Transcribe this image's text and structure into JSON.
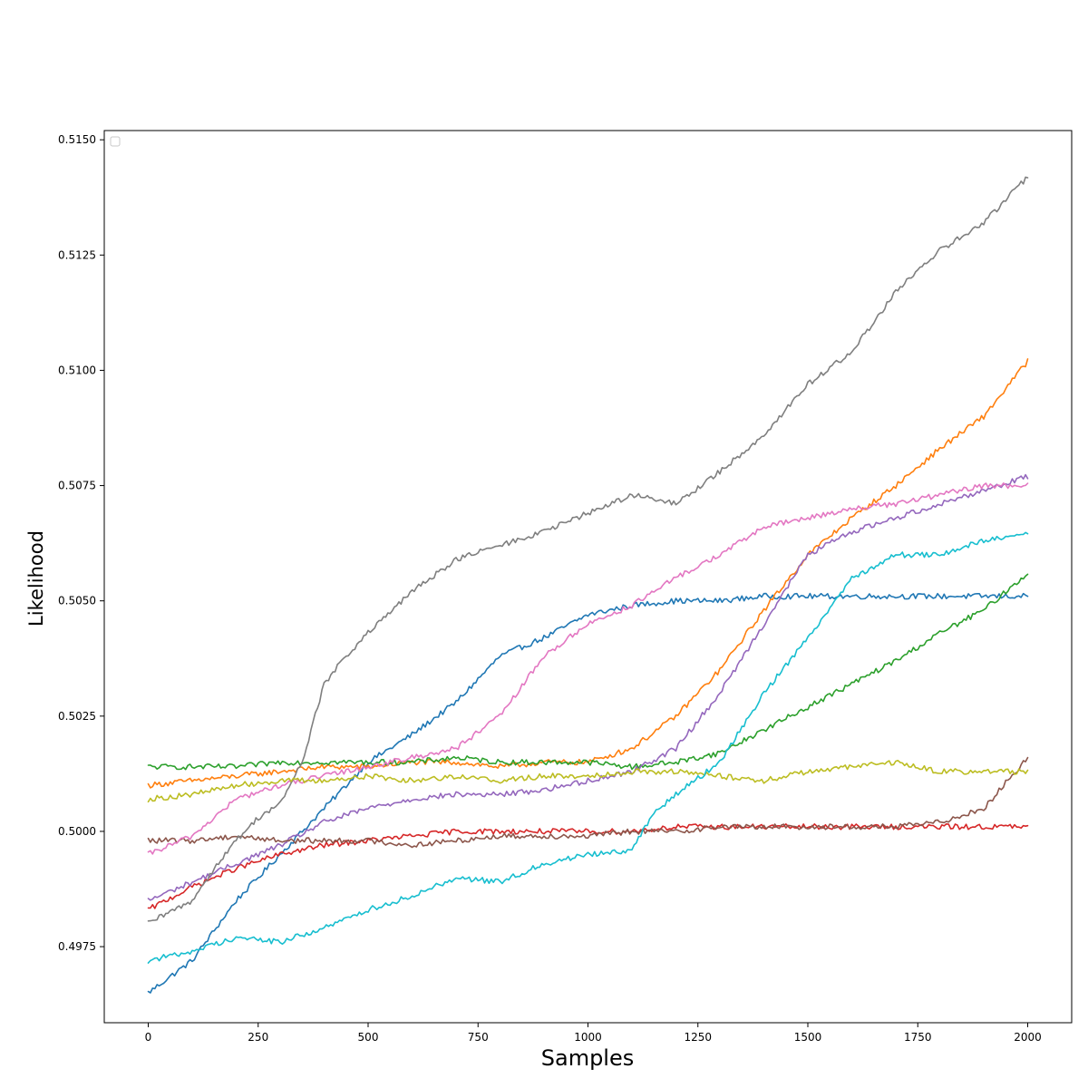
{
  "chart_data": {
    "type": "line",
    "xlabel": "Samples",
    "ylabel": "Likelihood",
    "xlim": [
      -100,
      2100
    ],
    "ylim": [
      0.49585,
      0.5152
    ],
    "x_ticks": [
      0,
      250,
      500,
      750,
      1000,
      1250,
      1500,
      1750,
      2000
    ],
    "x_tick_labels": [
      "0",
      "250",
      "500",
      "750",
      "1000",
      "1250",
      "1500",
      "1750",
      "2000"
    ],
    "y_ticks": [
      0.4975,
      0.5,
      0.5025,
      0.505,
      0.5075,
      0.51,
      0.5125,
      0.515
    ],
    "y_tick_labels": [
      "0.4975",
      "0.5000",
      "0.5025",
      "0.5050",
      "0.5075",
      "0.5100",
      "0.5125",
      "0.5150"
    ],
    "grid": false,
    "legend": "upper-left (empty)",
    "series": [
      {
        "color": "#1f77b4",
        "x": [
          0,
          100,
          200,
          300,
          400,
          500,
          600,
          700,
          800,
          900,
          1000,
          1100,
          1200,
          1300,
          1400,
          1500,
          1600,
          1700,
          1800,
          1900,
          2000
        ],
        "values": [
          0.4965,
          0.4972,
          0.4985,
          0.4995,
          0.5005,
          0.5015,
          0.5021,
          0.5028,
          0.5038,
          0.5042,
          0.5047,
          0.5049,
          0.505,
          0.505,
          0.5051,
          0.5051,
          0.5051,
          0.5051,
          0.5051,
          0.5051,
          0.5051
        ]
      },
      {
        "color": "#ff7f0e",
        "x": [
          0,
          100,
          200,
          300,
          400,
          500,
          600,
          700,
          800,
          900,
          1000,
          1100,
          1200,
          1300,
          1400,
          1500,
          1600,
          1700,
          1800,
          1900,
          2000
        ],
        "values": [
          0.501,
          0.5011,
          0.5012,
          0.5013,
          0.5014,
          0.5014,
          0.5015,
          0.5015,
          0.5014,
          0.5015,
          0.5015,
          0.5018,
          0.5025,
          0.5035,
          0.5048,
          0.506,
          0.5068,
          0.5075,
          0.5083,
          0.509,
          0.5102
        ]
      },
      {
        "color": "#2ca02c",
        "x": [
          0,
          100,
          200,
          300,
          400,
          500,
          600,
          700,
          800,
          900,
          1000,
          1100,
          1200,
          1300,
          1400,
          1500,
          1600,
          1700,
          1800,
          1900,
          2000
        ],
        "values": [
          0.5014,
          0.5014,
          0.5014,
          0.5015,
          0.5015,
          0.5015,
          0.5015,
          0.5016,
          0.5015,
          0.5015,
          0.5015,
          0.5014,
          0.5015,
          0.5017,
          0.5022,
          0.5027,
          0.5032,
          0.5037,
          0.5043,
          0.5048,
          0.5056
        ]
      },
      {
        "color": "#d62728",
        "x": [
          0,
          100,
          200,
          300,
          400,
          500,
          600,
          700,
          800,
          900,
          1000,
          1100,
          1200,
          1300,
          1400,
          1500,
          1600,
          1700,
          1800,
          1900,
          2000
        ],
        "values": [
          0.4983,
          0.4988,
          0.4992,
          0.4995,
          0.4997,
          0.4998,
          0.4999,
          0.5,
          0.5,
          0.5,
          0.5,
          0.5,
          0.5001,
          0.5001,
          0.5001,
          0.5001,
          0.5001,
          0.5001,
          0.5001,
          0.5001,
          0.5001
        ]
      },
      {
        "color": "#9467bd",
        "x": [
          0,
          100,
          200,
          300,
          400,
          500,
          600,
          700,
          800,
          900,
          1000,
          1100,
          1200,
          1300,
          1400,
          1500,
          1600,
          1700,
          1800,
          1900,
          2000
        ],
        "values": [
          0.4985,
          0.4989,
          0.4993,
          0.4997,
          0.5002,
          0.5005,
          0.5007,
          0.5008,
          0.5008,
          0.5009,
          0.5011,
          0.5013,
          0.5018,
          0.503,
          0.5045,
          0.506,
          0.5065,
          0.5068,
          0.5071,
          0.5074,
          0.5077
        ]
      },
      {
        "color": "#8c564b",
        "x": [
          0,
          100,
          200,
          300,
          400,
          500,
          600,
          700,
          800,
          900,
          1000,
          1100,
          1200,
          1300,
          1400,
          1500,
          1600,
          1700,
          1800,
          1900,
          2000
        ],
        "values": [
          0.4998,
          0.4998,
          0.4999,
          0.4998,
          0.4998,
          0.4998,
          0.4997,
          0.4998,
          0.4999,
          0.4999,
          0.4999,
          0.5,
          0.5,
          0.5001,
          0.5001,
          0.5001,
          0.5001,
          0.5001,
          0.5002,
          0.5005,
          0.5016
        ]
      },
      {
        "color": "#e377c2",
        "x": [
          0,
          100,
          200,
          300,
          400,
          500,
          600,
          700,
          800,
          900,
          1000,
          1100,
          1200,
          1300,
          1400,
          1500,
          1600,
          1700,
          1800,
          1900,
          2000
        ],
        "values": [
          0.4995,
          0.4999,
          0.5007,
          0.501,
          0.5012,
          0.5014,
          0.5016,
          0.5018,
          0.5025,
          0.5038,
          0.5045,
          0.5049,
          0.5055,
          0.506,
          0.5066,
          0.5068,
          0.507,
          0.5071,
          0.5073,
          0.5075,
          0.5075
        ]
      },
      {
        "color": "#7f7f7f",
        "x": [
          0,
          100,
          150,
          200,
          250,
          300,
          350,
          400,
          450,
          500,
          600,
          700,
          800,
          900,
          1000,
          1100,
          1200,
          1300,
          1400,
          1500,
          1600,
          1700,
          1800,
          1900,
          2000
        ],
        "values": [
          0.498,
          0.4985,
          0.4992,
          0.4998,
          0.5003,
          0.5006,
          0.5015,
          0.5032,
          0.5038,
          0.5043,
          0.5052,
          0.5059,
          0.5062,
          0.5065,
          0.5069,
          0.5073,
          0.5071,
          0.5078,
          0.5086,
          0.5097,
          0.5104,
          0.5117,
          0.5126,
          0.5132,
          0.5142
        ]
      },
      {
        "color": "#bcbd22",
        "x": [
          0,
          100,
          200,
          300,
          400,
          500,
          600,
          700,
          800,
          900,
          1000,
          1100,
          1200,
          1300,
          1400,
          1500,
          1600,
          1700,
          1800,
          1900,
          2000
        ],
        "values": [
          0.5007,
          0.5008,
          0.501,
          0.5011,
          0.5011,
          0.5012,
          0.5011,
          0.5012,
          0.5011,
          0.5012,
          0.5012,
          0.5013,
          0.5013,
          0.5012,
          0.5011,
          0.5013,
          0.5014,
          0.5015,
          0.5013,
          0.5013,
          0.5013
        ]
      },
      {
        "color": "#17becf",
        "x": [
          0,
          100,
          200,
          300,
          400,
          500,
          600,
          700,
          800,
          900,
          1000,
          1100,
          1150,
          1200,
          1300,
          1400,
          1500,
          1600,
          1700,
          1800,
          1900,
          2000
        ],
        "values": [
          0.4972,
          0.4974,
          0.4977,
          0.4976,
          0.4979,
          0.4983,
          0.4986,
          0.499,
          0.4989,
          0.4993,
          0.4995,
          0.4996,
          0.5004,
          0.5008,
          0.5015,
          0.503,
          0.5042,
          0.5055,
          0.506,
          0.506,
          0.5063,
          0.5065
        ]
      }
    ]
  }
}
